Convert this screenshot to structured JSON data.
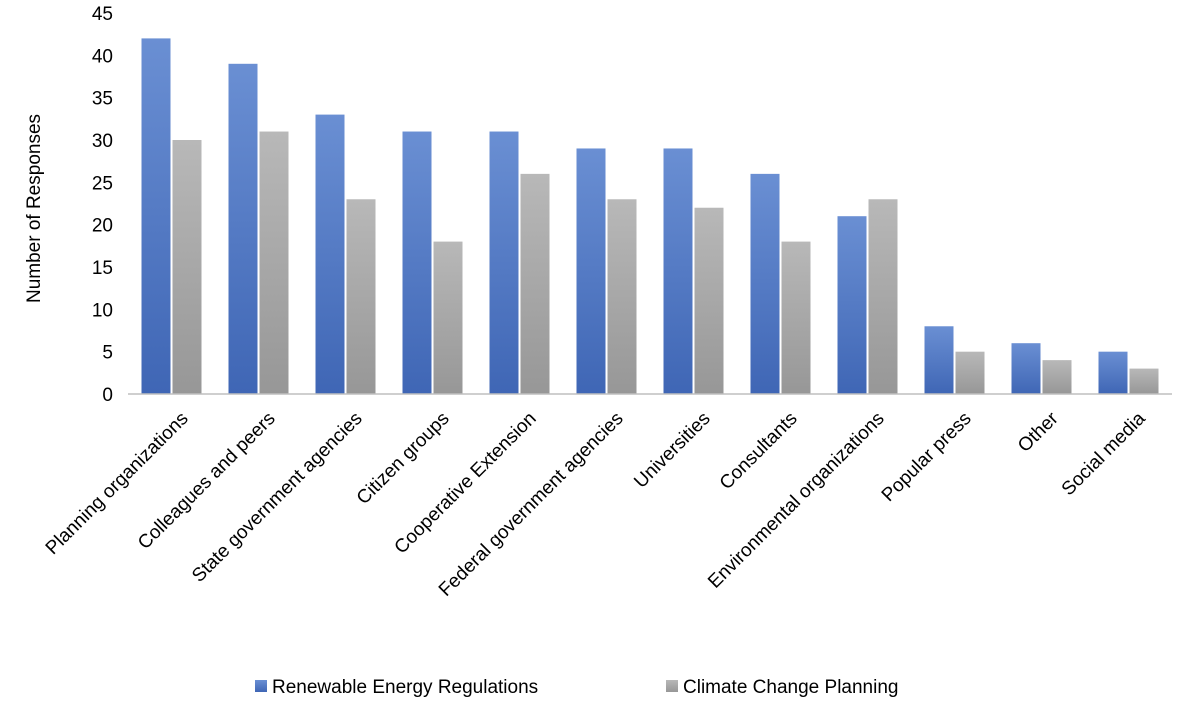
{
  "chart_data": {
    "type": "bar",
    "title": "",
    "xlabel": "",
    "ylabel": "Number of Responses",
    "ylim": [
      0,
      45
    ],
    "y_ticks": [
      0,
      5,
      10,
      15,
      20,
      25,
      30,
      35,
      40,
      45
    ],
    "grid": false,
    "legend_position": "bottom",
    "categories": [
      "Planning organizations",
      "Colleagues and peers",
      "State government agencies",
      "Citizen groups",
      "Cooperative Extension",
      "Federal government agencies",
      "Universities",
      "Consultants",
      "Environmental organizations",
      "Popular press",
      "Other",
      "Social media"
    ],
    "series": [
      {
        "name": "Renewable Energy Regulations",
        "color": "#4472C4",
        "values": [
          42,
          39,
          33,
          31,
          31,
          29,
          29,
          26,
          21,
          8,
          6,
          5
        ]
      },
      {
        "name": "Climate Change Planning",
        "color": "#A5A5A5",
        "values": [
          30,
          31,
          23,
          18,
          26,
          23,
          22,
          18,
          23,
          5,
          4,
          3
        ]
      }
    ]
  }
}
